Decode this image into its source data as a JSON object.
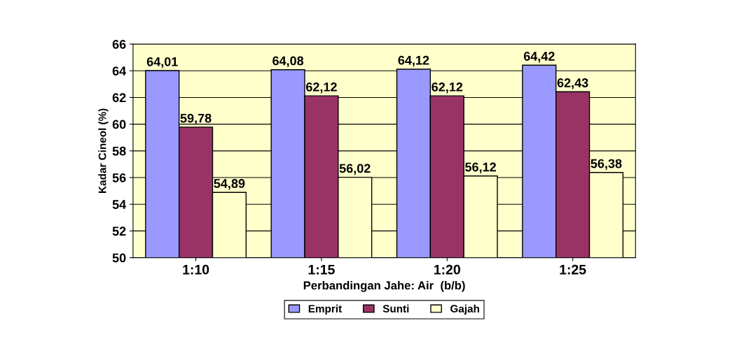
{
  "chart_data": {
    "type": "bar",
    "xlabel": "Perbandingan Jahe: Air  (b/b)",
    "ylabel": "Kadar Cineol (%)",
    "categories": [
      "1:10",
      "1:15",
      "1:20",
      "1:25"
    ],
    "series": [
      {
        "name": "Emprit",
        "color": "#9999ff",
        "values": [
          64.01,
          64.08,
          64.12,
          64.42
        ],
        "value_labels": [
          "64,01",
          "64,08",
          "64,12",
          "64,42"
        ]
      },
      {
        "name": "Sunti",
        "color": "#993366",
        "values": [
          59.78,
          62.12,
          62.12,
          62.43
        ],
        "value_labels": [
          "59,78",
          "62,12",
          "62,12",
          "62,43"
        ]
      },
      {
        "name": "Gajah",
        "color": "#ffffcc",
        "values": [
          54.89,
          56.02,
          56.12,
          56.38
        ],
        "value_labels": [
          "54,89",
          "56,02",
          "56,12",
          "56,38"
        ]
      }
    ],
    "ylim": [
      50,
      66
    ],
    "yticks": [
      50,
      52,
      54,
      56,
      58,
      60,
      62,
      64,
      66
    ],
    "grid": "y",
    "legend": "bottom"
  }
}
